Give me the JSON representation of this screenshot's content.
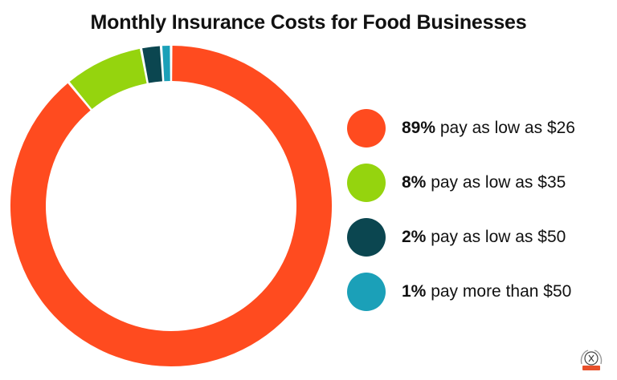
{
  "chart_data": {
    "type": "pie",
    "title": "Monthly Insurance Costs for Food Businesses",
    "donut": true,
    "legend_position": "right",
    "slices": [
      {
        "value": 89,
        "pct_label": "89%",
        "text": "pay as low as $26",
        "color": "#FF4B1F"
      },
      {
        "value": 8,
        "pct_label": "8%",
        "text": "pay as low as $35",
        "color": "#95D40E"
      },
      {
        "value": 2,
        "pct_label": "2%",
        "text": "pay as low as $50",
        "color": "#0B4650"
      },
      {
        "value": 1,
        "pct_label": "1%",
        "text": "pay more than $50",
        "color": "#1BA0B8"
      }
    ]
  },
  "logo": {
    "icon": "seal-logo-icon",
    "accent": "#E8502B"
  }
}
